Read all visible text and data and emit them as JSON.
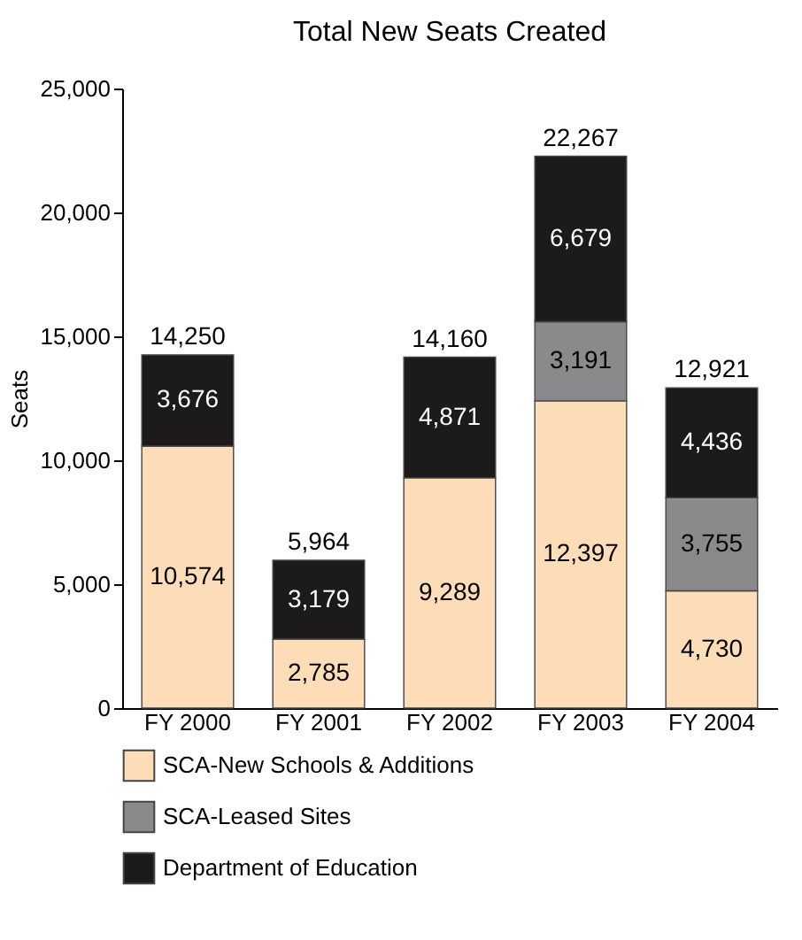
{
  "chart_data": {
    "type": "bar",
    "title": "Total New Seats Created",
    "ylabel": "Seats",
    "stacked": true,
    "categories": [
      "FY 2000",
      "FY 2001",
      "FY 2002",
      "FY 2003",
      "FY 2004"
    ],
    "series": [
      {
        "name": "SCA-New Schools & Additions",
        "color": "#fddcb8",
        "values": [
          10574,
          2785,
          9289,
          12397,
          4730
        ],
        "value_labels": [
          "10,574",
          "2,785",
          "9,289",
          "12,397",
          "4,730"
        ]
      },
      {
        "name": "SCA-Leased Sites",
        "color": "#8a8a8c",
        "values": [
          null,
          null,
          null,
          3191,
          3755
        ],
        "value_labels": [
          null,
          null,
          null,
          "3,191",
          "3,755"
        ]
      },
      {
        "name": "Department of Education",
        "color": "#1c1a1b",
        "values": [
          3676,
          3179,
          4871,
          6679,
          4436
        ],
        "value_labels": [
          "3,676",
          "3,179",
          "4,871",
          "6,679",
          "4,436"
        ]
      }
    ],
    "totals": [
      "14,250",
      "5,964",
      "14,160",
      "22,267",
      "12,921"
    ],
    "ylim": [
      0,
      25000
    ],
    "yticks": [
      {
        "value": 0,
        "label": "0"
      },
      {
        "value": 5000,
        "label": "5,000"
      },
      {
        "value": 10000,
        "label": "10,000"
      },
      {
        "value": 15000,
        "label": "15,000"
      },
      {
        "value": 20000,
        "label": "20,000"
      },
      {
        "value": 25000,
        "label": "25,000"
      }
    ],
    "grid": false,
    "legend": "bottom"
  }
}
